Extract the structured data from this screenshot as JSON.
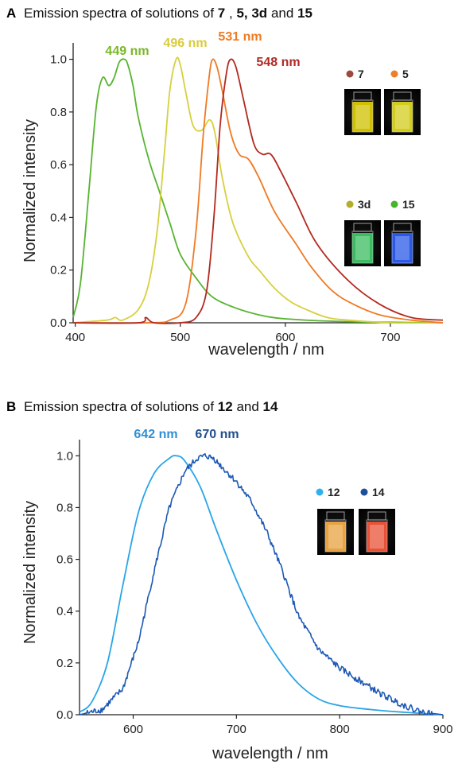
{
  "chart_data": [
    {
      "type": "line",
      "panel": "A",
      "title": "Emission spectra of solutions of",
      "title_compounds": [
        "7",
        "5, 3d",
        "15"
      ],
      "title_joiners": [
        ", ",
        " and "
      ],
      "xlabel": "wavelength / nm",
      "ylabel": "Normalized intensity",
      "xlim": [
        398,
        750
      ],
      "ylim": [
        0,
        1.05
      ],
      "xticks": [
        400,
        500,
        600,
        700
      ],
      "yticks": [
        0.0,
        0.2,
        0.4,
        0.6,
        0.8,
        1.0
      ],
      "ytick_labels": [
        "0.0",
        "0.2",
        "0.4",
        "0.6",
        "0.8",
        "1.0"
      ],
      "grid": false,
      "legend_placement": "right (vial photos)",
      "peak_labels": [
        {
          "text": "449 nm",
          "color": "#7bb728"
        },
        {
          "text": "496 nm",
          "color": "#d9cc3c"
        },
        {
          "text": "531 nm",
          "color": "#ee7a22"
        },
        {
          "text": "548 nm",
          "color": "#b02a24"
        }
      ],
      "legend_entries": [
        {
          "label": "7",
          "color": "#9c4940",
          "vial_glow": "#e4d400"
        },
        {
          "label": "5",
          "color": "#f07d28",
          "vial_glow": "#e8e21e"
        },
        {
          "label": "3d",
          "color": "#b3ad2a",
          "vial_glow": "#3fcf6a"
        },
        {
          "label": "15",
          "color": "#4ab32e",
          "vial_glow": "#2f62ff"
        }
      ],
      "series": [
        {
          "name": "15",
          "color": "#56b42f",
          "x": [
            398,
            405,
            413,
            420,
            426,
            432,
            437,
            442,
            447,
            450,
            455,
            460,
            470,
            480,
            490,
            500,
            515,
            530,
            550,
            575,
            600,
            650,
            700,
            750
          ],
          "y": [
            0.02,
            0.15,
            0.5,
            0.82,
            0.93,
            0.9,
            0.93,
            0.99,
            1.0,
            0.98,
            0.9,
            0.78,
            0.62,
            0.5,
            0.38,
            0.26,
            0.17,
            0.1,
            0.06,
            0.03,
            0.015,
            0.005,
            0.002,
            0
          ]
        },
        {
          "name": "3d",
          "color": "#d6d03e",
          "x": [
            398,
            430,
            438,
            445,
            460,
            470,
            478,
            485,
            490,
            496,
            500,
            505,
            512,
            520,
            528,
            533,
            540,
            550,
            565,
            575,
            590,
            605,
            620,
            640,
            660,
            700,
            750
          ],
          "y": [
            0,
            0.01,
            0.02,
            0.01,
            0.05,
            0.15,
            0.35,
            0.65,
            0.88,
            1.0,
            0.98,
            0.88,
            0.75,
            0.73,
            0.77,
            0.72,
            0.55,
            0.38,
            0.25,
            0.2,
            0.13,
            0.08,
            0.05,
            0.02,
            0.01,
            0,
            0
          ]
        },
        {
          "name": "5",
          "color": "#ef7a24",
          "x": [
            398,
            470,
            490,
            505,
            515,
            522,
            528,
            531,
            535,
            540,
            548,
            556,
            565,
            575,
            590,
            610,
            625,
            645,
            665,
            690,
            720,
            750
          ],
          "y": [
            0,
            0,
            0.01,
            0.07,
            0.35,
            0.72,
            0.95,
            1.0,
            0.97,
            0.88,
            0.72,
            0.64,
            0.62,
            0.55,
            0.42,
            0.3,
            0.21,
            0.12,
            0.07,
            0.03,
            0.01,
            0
          ]
        },
        {
          "name": "7",
          "color": "#b3291f",
          "x": [
            398,
            460,
            467,
            475,
            500,
            515,
            525,
            532,
            538,
            544,
            548,
            553,
            560,
            570,
            578,
            586,
            595,
            610,
            630,
            660,
            690,
            720,
            750
          ],
          "y": [
            0,
            0,
            0.02,
            0.0,
            0.0,
            0.02,
            0.12,
            0.4,
            0.75,
            0.95,
            1.0,
            0.97,
            0.85,
            0.68,
            0.64,
            0.64,
            0.58,
            0.46,
            0.3,
            0.16,
            0.07,
            0.02,
            0.01
          ]
        }
      ]
    },
    {
      "type": "line",
      "panel": "B",
      "title": "Emission spectra of solutions of",
      "title_compounds": [
        "12",
        "14"
      ],
      "title_joiners": [
        " and "
      ],
      "xlabel": "wavelength / nm",
      "ylabel": "Normalized intensity",
      "xlim": [
        548,
        900
      ],
      "ylim": [
        0,
        1.05
      ],
      "xticks": [
        600,
        700,
        800,
        900
      ],
      "yticks": [
        0.0,
        0.2,
        0.4,
        0.6,
        0.8,
        1.0
      ],
      "ytick_labels": [
        "0.0",
        "0.2",
        "0.4",
        "0.6",
        "0.8",
        "1.0"
      ],
      "grid": false,
      "legend_placement": "right (vial photos)",
      "peak_labels": [
        {
          "text": "642 nm",
          "color": "#2f8fd6"
        },
        {
          "text": "670 nm",
          "color": "#20508e"
        }
      ],
      "legend_entries": [
        {
          "label": "12",
          "color": "#2fb0ee",
          "vial_glow": "#ffb347"
        },
        {
          "label": "14",
          "color": "#1f4f96",
          "vial_glow": "#ff5a3c"
        }
      ],
      "series": [
        {
          "name": "12",
          "color": "#2aa5e8",
          "x": [
            548,
            560,
            575,
            590,
            605,
            620,
            635,
            642,
            650,
            665,
            680,
            700,
            720,
            740,
            760,
            780,
            800,
            830,
            860,
            900
          ],
          "y": [
            0.01,
            0.05,
            0.2,
            0.5,
            0.78,
            0.93,
            0.99,
            1.0,
            0.98,
            0.88,
            0.72,
            0.52,
            0.35,
            0.22,
            0.12,
            0.06,
            0.035,
            0.02,
            0.01,
            0
          ],
          "noise": 0
        },
        {
          "name": "14",
          "color": "#1c59b4",
          "x": [
            548,
            570,
            590,
            605,
            620,
            635,
            650,
            662,
            670,
            678,
            690,
            700,
            715,
            730,
            745,
            760,
            780,
            800,
            820,
            840,
            860,
            880,
            900
          ],
          "y": [
            0,
            0.02,
            0.1,
            0.28,
            0.55,
            0.8,
            0.94,
            0.99,
            1.0,
            0.99,
            0.94,
            0.9,
            0.82,
            0.7,
            0.55,
            0.38,
            0.25,
            0.18,
            0.13,
            0.08,
            0.04,
            0.01,
            0
          ],
          "noise": 0.012
        }
      ]
    }
  ]
}
